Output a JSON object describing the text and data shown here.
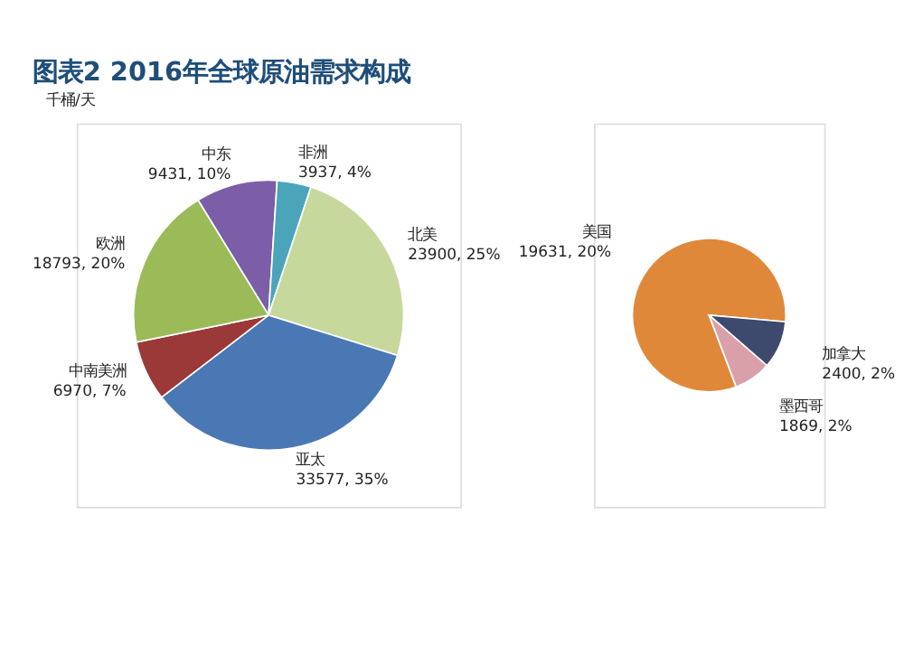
{
  "chart_data": [
    {
      "type": "pie",
      "title": "图表2 2016年全球原油需求构成",
      "annotations": [
        "千桶/天"
      ],
      "categories": [
        "中东",
        "非洲",
        "北美",
        "亚太",
        "中南美洲",
        "欧洲"
      ],
      "values": [
        9431,
        3937,
        23900,
        33577,
        6970,
        18793
      ],
      "colors": [
        "#7b5ea7",
        "#4aa5ba",
        "#c6d89b",
        "#4a78b5",
        "#9b3838",
        "#9bbb59"
      ],
      "value_labels": [
        "9431, 10%",
        "3937, 4%",
        "23900, 25%",
        "33577, 35%",
        "6970, 7%",
        "18793, 20%"
      ],
      "legend": false
    },
    {
      "type": "pie",
      "categories": [
        "美国",
        "加拿大",
        "墨西哥"
      ],
      "values": [
        19631,
        2400,
        1869
      ],
      "colors": [
        "#e0883a",
        "#3d4a6e",
        "#d9a0aa"
      ],
      "value_labels": [
        "19631, 20%",
        "2400, 2%",
        "1869, 2%"
      ],
      "legend": false
    }
  ]
}
